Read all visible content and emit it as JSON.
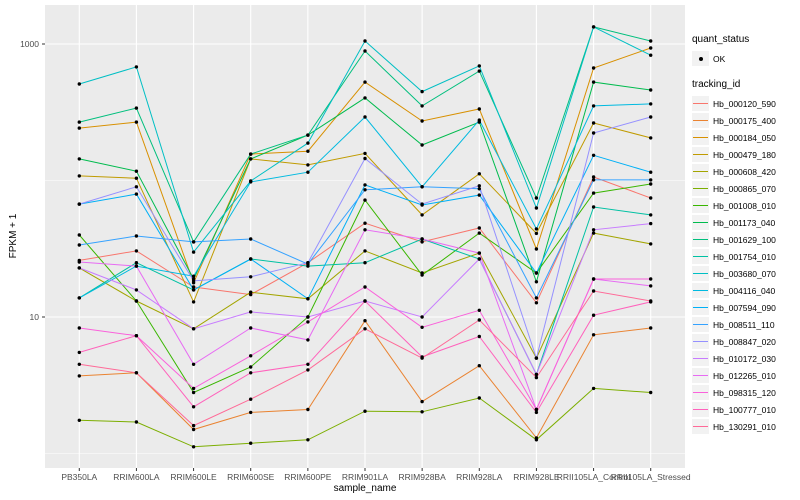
{
  "figure": {
    "bg": "#FFFFFF",
    "panel_bg": "#EBEBEB",
    "grid_color": "#FFFFFF",
    "tick_color": "#333333",
    "tick_label_color": "#4D4D4D",
    "point_color": "#000000"
  },
  "legend": {
    "quant_status": {
      "title": "quant_status",
      "items": [
        {
          "label": "OK",
          "symbol": "black-point"
        }
      ]
    },
    "tracking_id": {
      "title": "tracking_id"
    }
  },
  "chart_data": {
    "type": "line",
    "title": "",
    "xlabel": "sample_name",
    "ylabel": "FPKM + 1",
    "yscale": "log10",
    "ylim": [
      1,
      1500
    ],
    "y_ticks": [
      {
        "label": "1000",
        "value": 1000
      },
      {
        "label": "10",
        "value": 10
      }
    ],
    "y_minor": [
      100,
      1
    ],
    "categories": [
      "PB350LA",
      "RRIM600LA",
      "RRIM600LE",
      "RRIM600SE",
      "RRIM600PE",
      "RRIM901LA",
      "RRIM928BA",
      "RRIM928LA",
      "RRIM928LE",
      "RRII105LA_Control",
      "RRII105LA_Stressed"
    ],
    "series": [
      {
        "name": "Hb_000120_590",
        "color": "#F8766D",
        "values": [
          26,
          30.5,
          16.6,
          14.6,
          25,
          48.7,
          35.5,
          44.9,
          12.7,
          106,
          74.5
        ]
      },
      {
        "name": "Hb_000175_400",
        "color": "#EA8331",
        "values": [
          3.7,
          3.9,
          1.5,
          2.0,
          2.1,
          9.4,
          2.4,
          4.4,
          1.3,
          7.4,
          8.3
        ]
      },
      {
        "name": "Hb_000184_050",
        "color": "#D89000",
        "values": [
          242,
          268,
          17.8,
          156,
          164,
          526,
          273,
          334,
          31.5,
          667,
          935
        ]
      },
      {
        "name": "Hb_000479_180",
        "color": "#C09B00",
        "values": [
          108,
          104,
          12.9,
          144,
          130,
          158,
          56,
          112,
          41,
          264,
          205
        ]
      },
      {
        "name": "Hb_000608_420",
        "color": "#A3A500",
        "values": [
          22.9,
          13.1,
          8.2,
          15.2,
          13.6,
          30.5,
          21,
          29.4,
          5.0,
          41.2,
          34.3
        ]
      },
      {
        "name": "Hb_000865_070",
        "color": "#7CAE00",
        "values": [
          1.75,
          1.7,
          1.12,
          1.19,
          1.26,
          2.04,
          2.02,
          2.55,
          1.26,
          3.0,
          2.8
        ]
      },
      {
        "name": "Hb_001008_010",
        "color": "#39B600",
        "values": [
          39.9,
          13.1,
          2.8,
          4.3,
          10.0,
          71.9,
          20.3,
          41.2,
          21,
          80.9,
          94.2
        ]
      },
      {
        "name": "Hb_001173_040",
        "color": "#00BB4E",
        "values": [
          144,
          117,
          19,
          144,
          215,
          403,
          182,
          268,
          18.1,
          526,
          460
        ]
      },
      {
        "name": "Hb_001629_100",
        "color": "#00BF7D",
        "values": [
          268,
          339,
          35.5,
          156,
          215,
          889,
          352,
          633,
          74.5,
          1334,
          1052
        ]
      },
      {
        "name": "Hb_001754_010",
        "color": "#00C1A3",
        "values": [
          13.8,
          25,
          15.8,
          26.6,
          23.6,
          25,
          37.3,
          26.6,
          3.8,
          63.9,
          56
        ]
      },
      {
        "name": "Hb_003680_070",
        "color": "#00BFC4",
        "values": [
          509,
          679,
          29.9,
          99.2,
          188,
          1052,
          448,
          691,
          62.9,
          1334,
          828
        ]
      },
      {
        "name": "Hb_004116_040",
        "color": "#00BAE0",
        "values": [
          13.8,
          23.6,
          19.9,
          97.6,
          115,
          292,
          89.9,
          277,
          44.2,
          352,
          364
        ]
      },
      {
        "name": "Hb_007594_090",
        "color": "#00B0F6",
        "values": [
          67.2,
          79.5,
          15.8,
          26.6,
          13.6,
          92.9,
          66.1,
          78.2,
          21,
          153,
          115
        ]
      },
      {
        "name": "Hb_008511_110",
        "color": "#35A2FF",
        "values": [
          33.7,
          39.2,
          35.5,
          37.3,
          24.4,
          85.5,
          89.9,
          86.9,
          13.8,
          101,
          101
        ]
      },
      {
        "name": "Hb_008847_020",
        "color": "#9590FF",
        "values": [
          67.2,
          89.9,
          18.4,
          19.7,
          25,
          145,
          67.2,
          91.4,
          5.0,
          223,
          292
        ]
      },
      {
        "name": "Hb_010172_030",
        "color": "#C77CFF",
        "values": [
          22.9,
          15.8,
          8.2,
          10.9,
          10,
          13.1,
          10,
          26.6,
          3.8,
          43.5,
          48.3
        ]
      },
      {
        "name": "Hb_012265_010",
        "color": "#E76BF3",
        "values": [
          25.3,
          23.6,
          4.5,
          8.3,
          6.8,
          43.5,
          37.3,
          29.4,
          2.1,
          19,
          16.9
        ]
      },
      {
        "name": "Hb_098315_120",
        "color": "#FA62DB",
        "values": [
          8.3,
          7.3,
          3.0,
          5.2,
          9.2,
          16.6,
          8.4,
          11.2,
          2.1,
          19,
          19
        ]
      },
      {
        "name": "Hb_100777_010",
        "color": "#FF62BC",
        "values": [
          5.5,
          7.3,
          2.2,
          3.9,
          4.5,
          13.1,
          5.1,
          7.2,
          2.0,
          10.3,
          12.9
        ]
      },
      {
        "name": "Hb_130291_010",
        "color": "#FF6A98",
        "values": [
          4.5,
          3.9,
          1.6,
          2.5,
          4.1,
          8.2,
          5.0,
          9.5,
          3.6,
          15.5,
          13.1
        ]
      }
    ]
  }
}
